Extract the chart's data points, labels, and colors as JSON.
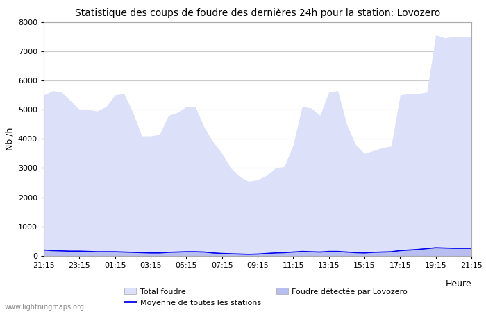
{
  "title": "Statistique des coups de foudre des dernières 24h pour la station: Lovozero",
  "ylabel": "Nb /h",
  "watermark": "www.lightningmaps.org",
  "xlim": [
    0,
    48
  ],
  "ylim": [
    0,
    8000
  ],
  "yticks": [
    0,
    1000,
    2000,
    3000,
    4000,
    5000,
    6000,
    7000,
    8000
  ],
  "xtick_labels": [
    "21:15",
    "23:15",
    "01:15",
    "03:15",
    "05:15",
    "07:15",
    "09:15",
    "11:15",
    "13:15",
    "15:15",
    "17:15",
    "19:15",
    "21:15"
  ],
  "xtick_positions": [
    0,
    4,
    8,
    12,
    16,
    20,
    24,
    28,
    32,
    36,
    40,
    44,
    48
  ],
  "background_color": "#ffffff",
  "plot_bg_color": "#ffffff",
  "grid_color": "#cccccc",
  "fill_total_color": "#dce0f8",
  "fill_local_color": "#b8bef0",
  "line_mean_color": "#0000ee",
  "total_foudre": [
    5500,
    5650,
    5600,
    5300,
    5000,
    5000,
    4950,
    5100,
    5500,
    5550,
    4900,
    4100,
    4100,
    4150,
    4800,
    4900,
    5100,
    5100,
    4400,
    3900,
    3500,
    3000,
    2700,
    2550,
    2600,
    2750,
    3000,
    3050,
    3800,
    5100,
    5050,
    4800,
    5600,
    5650,
    4500,
    3800,
    3500,
    3600,
    3700,
    3750,
    5500,
    5550,
    5550,
    5600,
    7550,
    7450,
    7500,
    7500,
    7500
  ],
  "local_foudre": [
    200,
    180,
    170,
    160,
    160,
    150,
    140,
    140,
    140,
    130,
    120,
    110,
    100,
    100,
    120,
    130,
    140,
    140,
    130,
    100,
    80,
    70,
    60,
    50,
    60,
    80,
    100,
    110,
    130,
    150,
    140,
    130,
    150,
    150,
    130,
    110,
    100,
    120,
    130,
    140,
    180,
    200,
    220,
    250,
    280,
    270,
    260,
    260,
    260
  ],
  "mean_line": [
    200,
    180,
    170,
    160,
    160,
    150,
    140,
    140,
    140,
    130,
    120,
    110,
    100,
    100,
    120,
    130,
    140,
    140,
    130,
    100,
    80,
    70,
    60,
    50,
    60,
    80,
    100,
    110,
    130,
    150,
    140,
    130,
    150,
    150,
    130,
    110,
    100,
    120,
    130,
    140,
    180,
    200,
    220,
    250,
    280,
    270,
    260,
    260,
    260
  ],
  "legend_row1": [
    "Total foudre",
    "Moyenne de toutes les stations"
  ],
  "legend_row2": [
    "Foudre détectée par Lovozero"
  ]
}
